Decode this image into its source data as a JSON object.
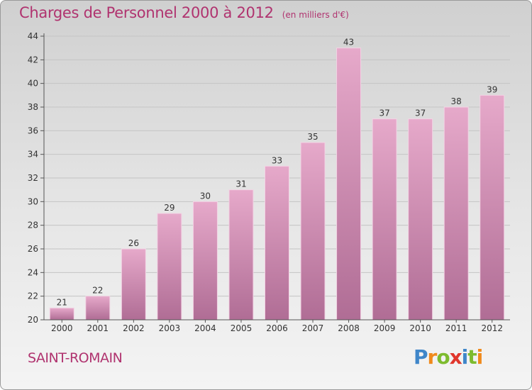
{
  "chart_data": {
    "type": "bar",
    "title": "Charges de Personnel 2000 à 2012",
    "subtitle": "(en milliers d'€)",
    "categories": [
      "2000",
      "2001",
      "2002",
      "2003",
      "2004",
      "2005",
      "2006",
      "2007",
      "2008",
      "2009",
      "2010",
      "2011",
      "2012"
    ],
    "values": [
      21,
      22,
      26,
      29,
      30,
      31,
      33,
      35,
      43,
      37,
      37,
      38,
      39
    ],
    "ylim": [
      20,
      44
    ],
    "yticks": [
      20,
      22,
      24,
      26,
      28,
      30,
      32,
      34,
      36,
      38,
      40,
      42,
      44
    ],
    "xlabel": "",
    "ylabel": "",
    "grid": true,
    "bar_color": "#d58fb5",
    "text_color": "#b0336f"
  },
  "commune": "SAINT-ROMAIN",
  "logo": {
    "letters": [
      "P",
      "r",
      "o",
      "x",
      "i",
      "t",
      "i"
    ],
    "colors": [
      "#3f86c9",
      "#f08a1c",
      "#7dbb2e",
      "#e0362c",
      "#3f86c9",
      "#7dbb2e",
      "#f08a1c"
    ]
  }
}
